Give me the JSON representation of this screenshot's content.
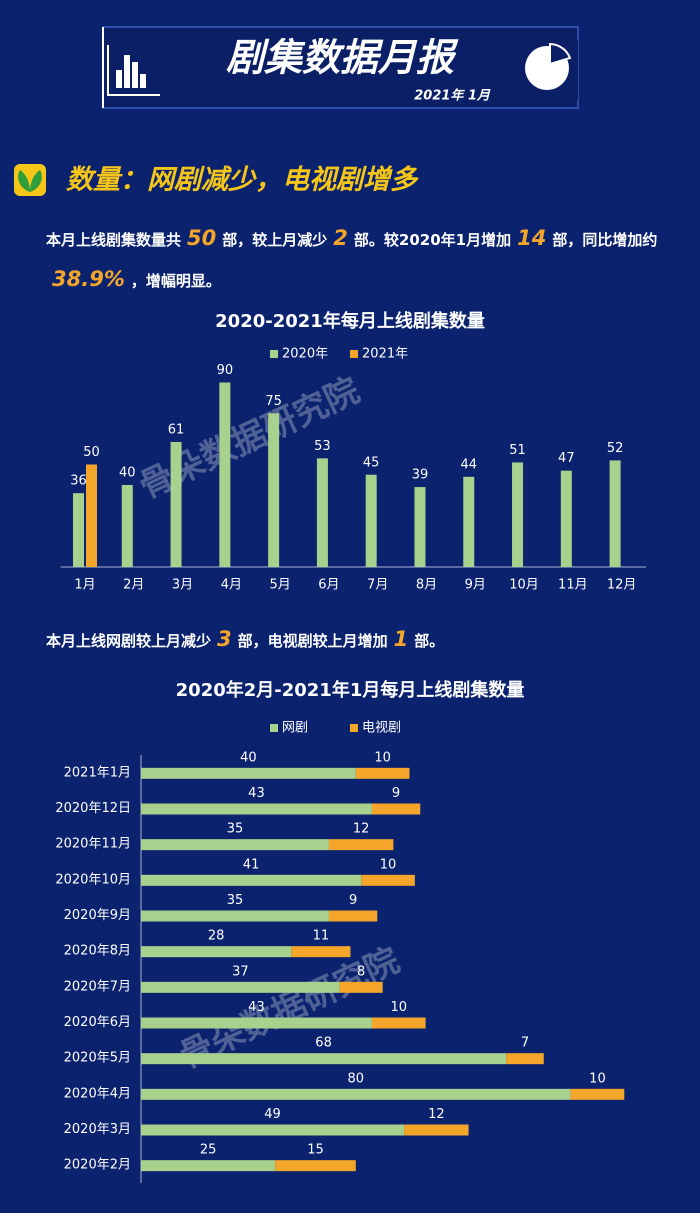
{
  "header": {
    "title": "剧集数据月报",
    "date": "2021年 1月"
  },
  "section_title": "数量：网剧减少，电视剧增多",
  "paragraphs": [
    [
      "本月上线剧集数量共",
      "50",
      "部，较上月减少",
      "2",
      "部。较2020年1月增加",
      "14",
      "部，同比增加约",
      "38.9%",
      "，增幅明显。"
    ],
    [
      "本月上线网剧较上月减少",
      "3",
      "部，电视剧较上月增加",
      "1",
      "部。"
    ]
  ],
  "watermark": [
    "骨朵数据研究院",
    "骨朵数据研究院"
  ],
  "chart_data": [
    {
      "type": "bar",
      "title": "2020-2021年每月上线剧集数量",
      "categories": [
        "1月",
        "2月",
        "3月",
        "4月",
        "5月",
        "6月",
        "7月",
        "8月",
        "9月",
        "10月",
        "11月",
        "12月"
      ],
      "series": [
        {
          "name": "2020年",
          "color": "#a9d18e",
          "values": [
            36,
            40,
            61,
            90,
            75,
            53,
            45,
            39,
            44,
            51,
            47,
            52
          ]
        },
        {
          "name": "2021年",
          "color": "#f4a62a",
          "values": [
            50,
            null,
            null,
            null,
            null,
            null,
            null,
            null,
            null,
            null,
            null,
            null
          ]
        }
      ],
      "ylim": [
        0,
        100
      ],
      "orientation": "vertical",
      "stacked": false
    },
    {
      "type": "bar",
      "title": "2020年2月-2021年1月每月上线剧集数量",
      "categories": [
        "2021年1月",
        "2020年12日",
        "2020年11月",
        "2020年10月",
        "2020年9月",
        "2020年8月",
        "2020年7月",
        "2020年6月",
        "2020年5月",
        "2020年4月",
        "2020年3月",
        "2020年2月"
      ],
      "series": [
        {
          "name": "网剧",
          "color": "#a9d18e",
          "values": [
            40,
            43,
            35,
            41,
            35,
            28,
            37,
            43,
            68,
            80,
            49,
            25
          ]
        },
        {
          "name": "电视剧",
          "color": "#f4a62a",
          "values": [
            10,
            9,
            12,
            10,
            9,
            11,
            8,
            10,
            7,
            10,
            12,
            15
          ]
        }
      ],
      "xlim": [
        0,
        100
      ],
      "orientation": "horizontal",
      "stacked": true
    }
  ]
}
